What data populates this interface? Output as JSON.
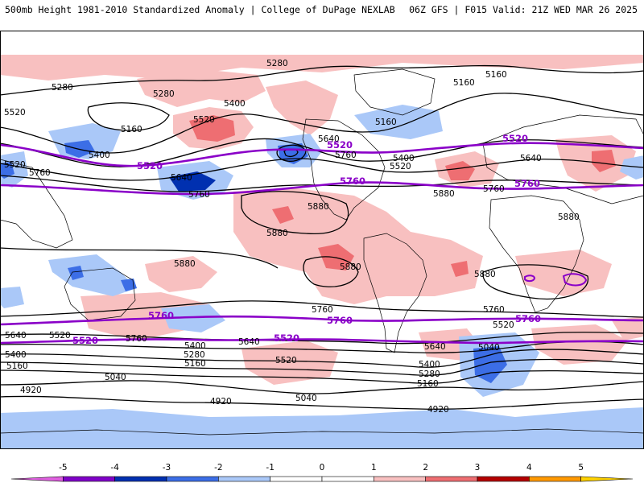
{
  "header": {
    "left": "500mb Height 1981-2010 Standardized Anomaly | College of DuPage NEXLAB",
    "right": "06Z GFS | F015 Valid: 21Z WED MAR 26 2025"
  },
  "colors": {
    "purple_contour": "#8a00c8",
    "scale": [
      "#e060e0",
      "#8000c8",
      "#0030b0",
      "#3c6ee6",
      "#aac8f8",
      "#ffffff",
      "#ffffff",
      "#f8c0c0",
      "#ee6e72",
      "#b40000",
      "#ff9900",
      "#ffd200"
    ]
  },
  "contour_labels": {
    "black": [
      {
        "text": "5280"
      },
      {
        "text": "5280"
      },
      {
        "text": "5280"
      },
      {
        "text": "5160"
      },
      {
        "text": "5160"
      },
      {
        "text": "5160"
      },
      {
        "text": "5160"
      },
      {
        "text": "5400"
      },
      {
        "text": "5400"
      },
      {
        "text": "5520"
      },
      {
        "text": "5520"
      },
      {
        "text": "5640"
      },
      {
        "text": "5640"
      },
      {
        "text": "5760"
      },
      {
        "text": "5760"
      },
      {
        "text": "5760"
      },
      {
        "text": "5880"
      },
      {
        "text": "5880"
      },
      {
        "text": "5880"
      },
      {
        "text": "5880"
      },
      {
        "text": "5880"
      },
      {
        "text": "5880"
      },
      {
        "text": "5880"
      },
      {
        "text": "5760"
      },
      {
        "text": "5760"
      },
      {
        "text": "5640"
      },
      {
        "text": "5520"
      },
      {
        "text": "5400"
      },
      {
        "text": "5160"
      },
      {
        "text": "5040"
      },
      {
        "text": "4920"
      },
      {
        "text": "4920"
      },
      {
        "text": "5040"
      },
      {
        "text": "5160"
      },
      {
        "text": "5280"
      },
      {
        "text": "5400"
      },
      {
        "text": "5520"
      },
      {
        "text": "5640"
      },
      {
        "text": "5040"
      },
      {
        "text": "4920"
      },
      {
        "text": "5520"
      },
      {
        "text": "5640"
      },
      {
        "text": "5400"
      },
      {
        "text": "5280"
      },
      {
        "text": "5160"
      },
      {
        "text": "5760"
      },
      {
        "text": "5520"
      },
      {
        "text": "5400"
      },
      {
        "text": "5520"
      },
      {
        "text": "5640"
      },
      {
        "text": "5880"
      },
      {
        "text": "5760"
      }
    ],
    "purple": [
      {
        "text": "5520"
      },
      {
        "text": "5520"
      },
      {
        "text": "5520"
      },
      {
        "text": "5760"
      },
      {
        "text": "5760"
      },
      {
        "text": "5760"
      },
      {
        "text": "5760"
      },
      {
        "text": "5760"
      },
      {
        "text": "5520"
      },
      {
        "text": "5520"
      }
    ]
  },
  "colorbar": {
    "ticks": [
      "-5",
      "-4",
      "-3",
      "-2",
      "-1",
      "0",
      "1",
      "2",
      "3",
      "4",
      "5"
    ]
  }
}
